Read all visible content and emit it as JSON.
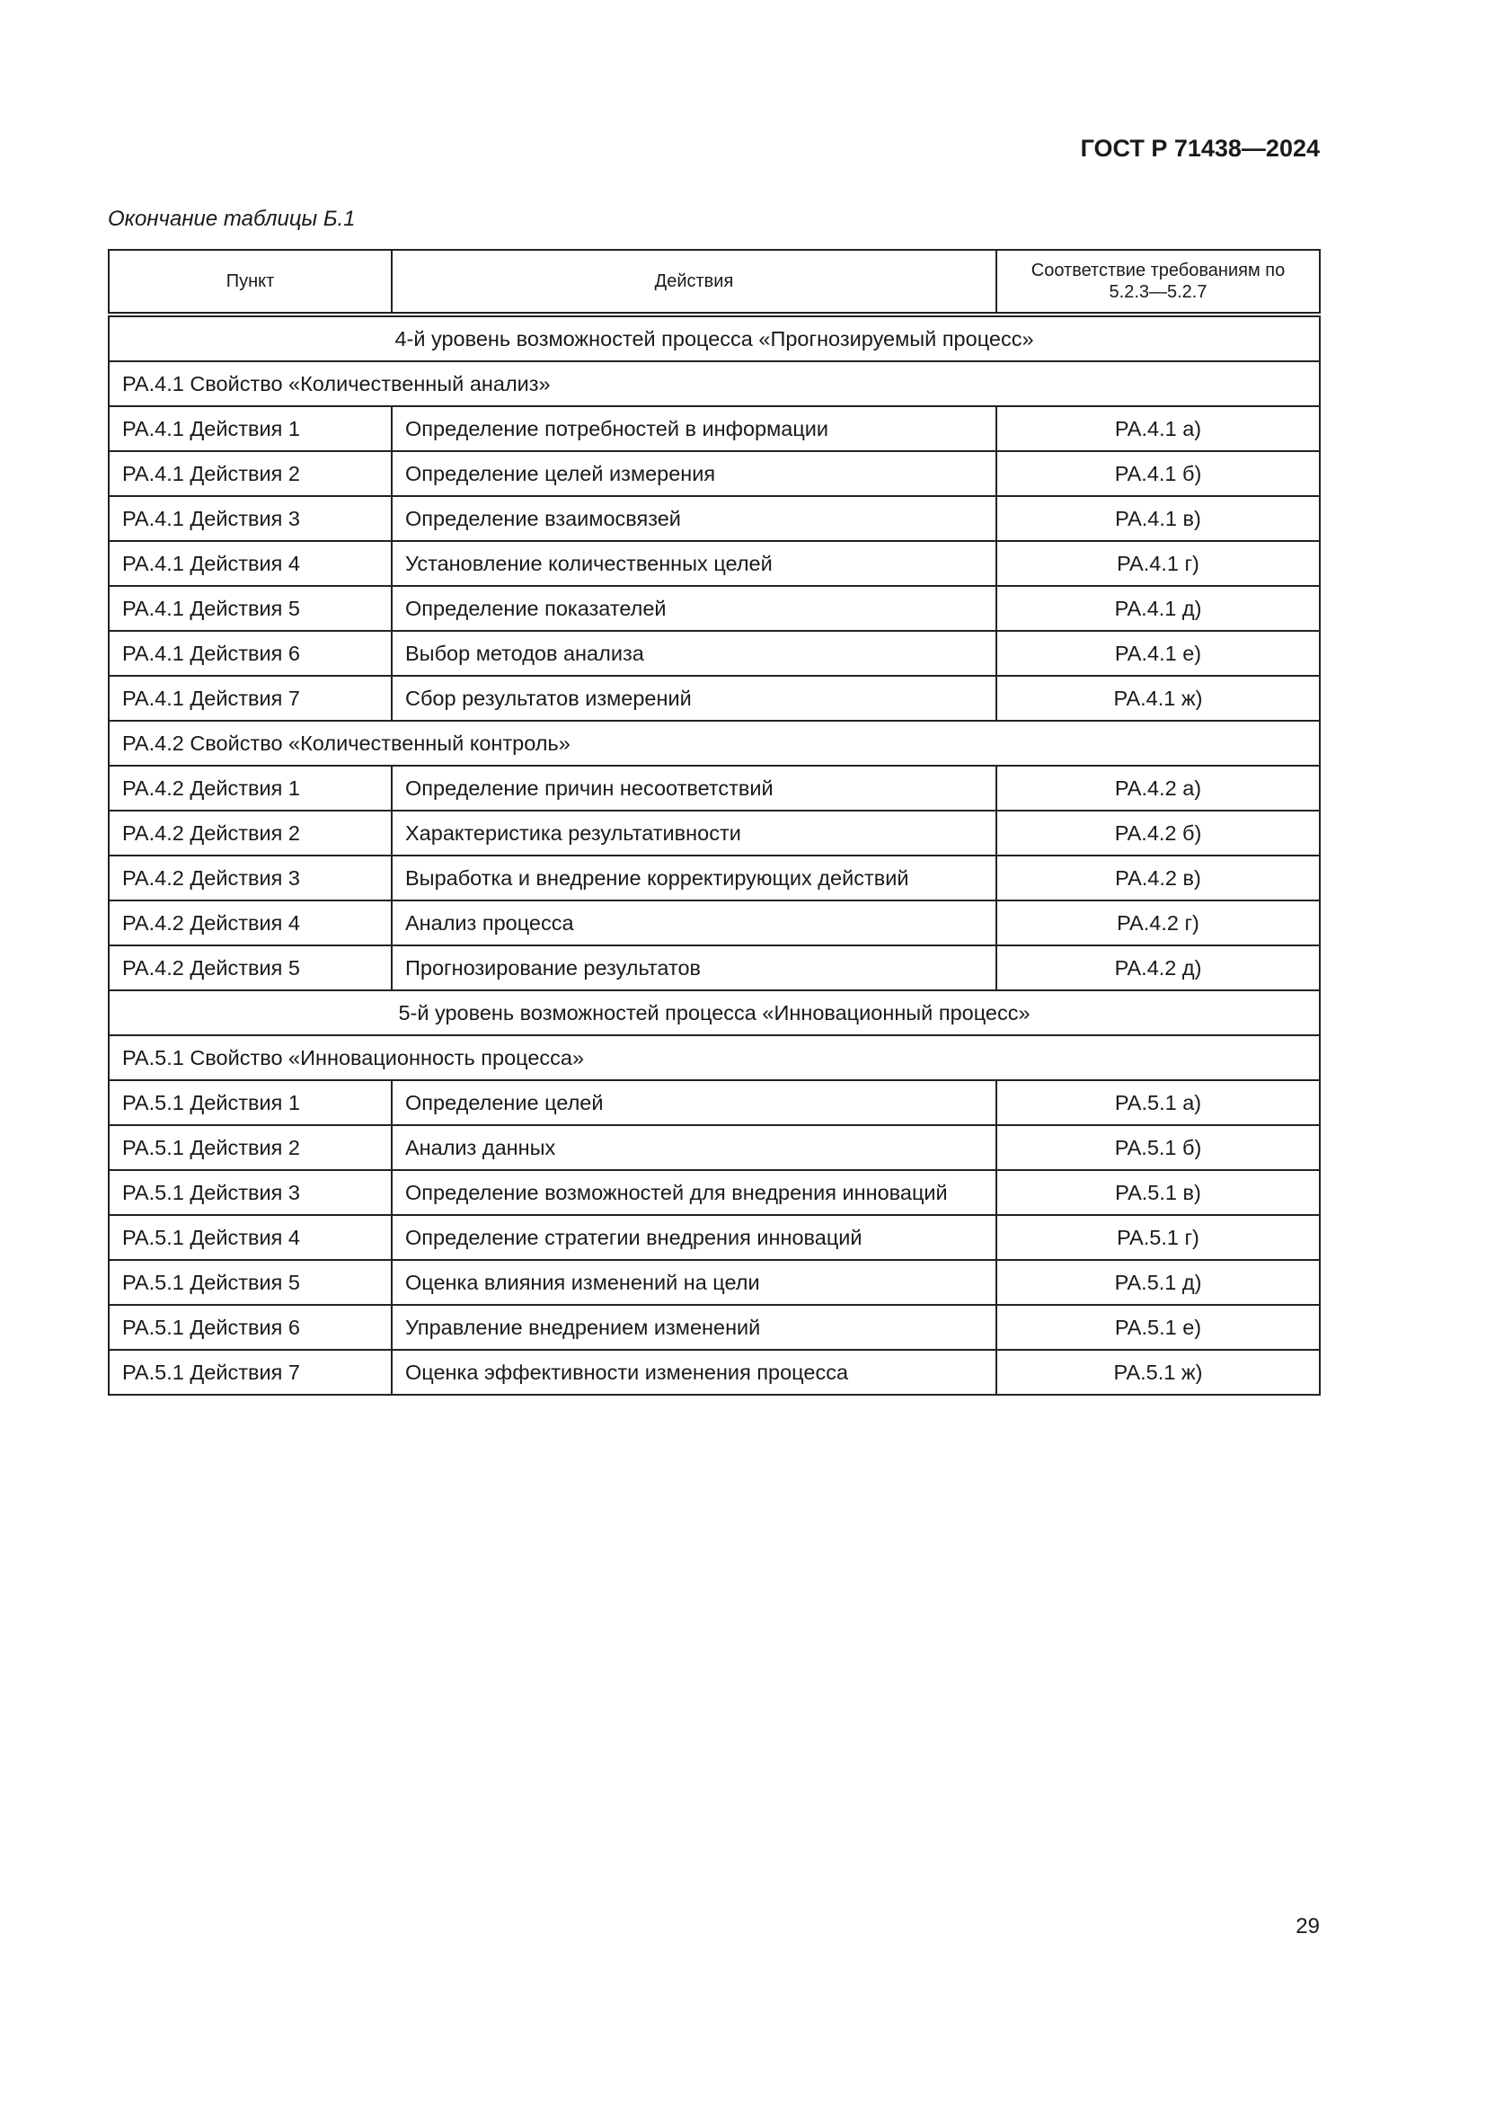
{
  "header": {
    "doc_id": "ГОСТ Р 71438—2024"
  },
  "caption": "Окончание таблицы Б.1",
  "table": {
    "columns": [
      "Пункт",
      "Действия",
      "Соответствие требованиям по 5.2.3—5.2.7"
    ],
    "rows": [
      {
        "type": "level",
        "text": "4-й уровень возможностей процесса «Прогнозируемый процесс»"
      },
      {
        "type": "property",
        "text": "PA.4.1 Свойство «Количественный анализ»"
      },
      {
        "type": "row",
        "cells": [
          "PA.4.1 Действия 1",
          "Определение потребностей в информации",
          "PA.4.1 а)"
        ]
      },
      {
        "type": "row",
        "cells": [
          "PA.4.1 Действия 2",
          "Определение целей измерения",
          "PA.4.1 б)"
        ]
      },
      {
        "type": "row",
        "cells": [
          "PA.4.1 Действия 3",
          "Определение взаимосвязей",
          "PA.4.1 в)"
        ]
      },
      {
        "type": "row",
        "cells": [
          "PA.4.1 Действия 4",
          "Установление количественных целей",
          "PA.4.1 г)"
        ]
      },
      {
        "type": "row",
        "cells": [
          "PA.4.1 Действия 5",
          "Определение показателей",
          "PA.4.1 д)"
        ]
      },
      {
        "type": "row",
        "cells": [
          "PA.4.1 Действия 6",
          "Выбор методов анализа",
          "PA.4.1 е)"
        ]
      },
      {
        "type": "row",
        "cells": [
          "PA.4.1 Действия 7",
          "Сбор результатов измерений",
          "PA.4.1 ж)"
        ]
      },
      {
        "type": "property",
        "text": "PA.4.2 Свойство «Количественный контроль»"
      },
      {
        "type": "row",
        "cells": [
          "PA.4.2 Действия 1",
          "Определение причин несоответствий",
          "PA.4.2 а)"
        ]
      },
      {
        "type": "row",
        "cells": [
          "PA.4.2 Действия 2",
          "Характеристика результативности",
          "PA.4.2 б)"
        ]
      },
      {
        "type": "row",
        "cells": [
          "PA.4.2 Действия 3",
          "Выработка и внедрение корректирующих действий",
          "PA.4.2 в)"
        ]
      },
      {
        "type": "row",
        "cells": [
          "PA.4.2 Действия 4",
          "Анализ процесса",
          "PA.4.2 г)"
        ]
      },
      {
        "type": "row",
        "cells": [
          "PA.4.2 Действия 5",
          "Прогнозирование результатов",
          "PA.4.2 д)"
        ]
      },
      {
        "type": "level",
        "text": "5-й уровень возможностей процесса «Инновационный процесс»"
      },
      {
        "type": "property",
        "text": "PA.5.1 Свойство «Инновационность процесса»"
      },
      {
        "type": "row",
        "cells": [
          "PA.5.1 Действия 1",
          "Определение целей",
          "PA.5.1 а)"
        ]
      },
      {
        "type": "row",
        "cells": [
          "PA.5.1 Действия 2",
          "Анализ данных",
          "PA.5.1 б)"
        ]
      },
      {
        "type": "row",
        "cells": [
          "PA.5.1 Действия 3",
          "Определение возможностей для внедрения инноваций",
          "PA.5.1 в)"
        ]
      },
      {
        "type": "row",
        "cells": [
          "PA.5.1 Действия 4",
          "Определение стратегии внедрения инноваций",
          "PA.5.1 г)"
        ]
      },
      {
        "type": "row",
        "cells": [
          "PA.5.1 Действия 5",
          "Оценка влияния изменений на цели",
          "PA.5.1 д)"
        ]
      },
      {
        "type": "row",
        "cells": [
          "PA.5.1 Действия 6",
          "Управление внедрением изменений",
          "PA.5.1 е)"
        ]
      },
      {
        "type": "row",
        "cells": [
          "PA.5.1 Действия 7",
          "Оценка эффективности изменения процесса",
          "PA.5.1 ж)"
        ]
      }
    ]
  },
  "footer": {
    "page_number": "29"
  }
}
